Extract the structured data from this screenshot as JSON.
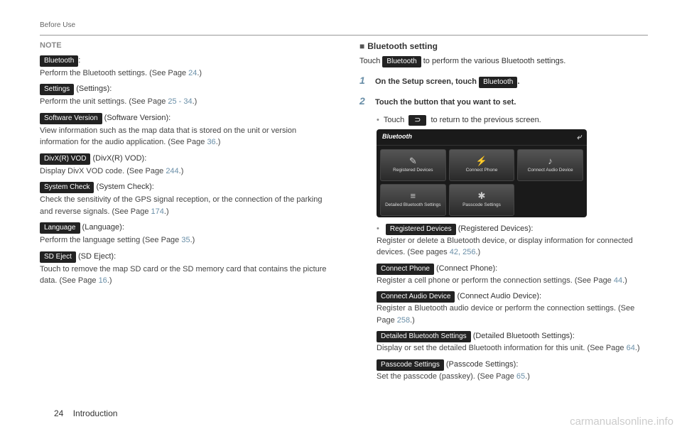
{
  "header": "Before Use",
  "left": {
    "note": "NOTE",
    "items": [
      {
        "pill": "Bluetooth",
        "suffix": ":",
        "body_pre": "Perform the Bluetooth settings. (See Page ",
        "page": "24",
        "body_post": ".)"
      },
      {
        "pill": "Settings",
        "suffix": " (Settings):",
        "body_pre": "Perform the unit settings. (See Page ",
        "page": "25 - 34",
        "body_post": ".)"
      },
      {
        "pill": "Software Version",
        "suffix": " (Software Version):",
        "body_pre": "View information such as the map data that is stored on the unit or version information for the audio application. (See Page ",
        "page": "36",
        "body_post": ".)"
      },
      {
        "pill": "DivX(R) VOD",
        "suffix": " (DivX(R) VOD):",
        "body_pre": "Display DivX VOD code. (See Page ",
        "page": "244",
        "body_post": ".)"
      },
      {
        "pill": "System Check",
        "suffix": " (System Check):",
        "body_pre": "Check the sensitivity of the GPS signal reception, or the connection of the parking and reverse signals. (See Page ",
        "page": "174",
        "body_post": ".)"
      },
      {
        "pill": "Language",
        "suffix": " (Language):",
        "body_pre": "Perform the language setting (See Page ",
        "page": "35",
        "body_post": ".)"
      },
      {
        "pill": "SD Eject",
        "suffix": " (SD Eject):",
        "body_pre": "Touch to remove the map SD card or the SD memory card that contains the picture data. (See Page ",
        "page": "16",
        "body_post": ".)"
      }
    ]
  },
  "right": {
    "title": "Bluetooth setting",
    "intro_pre": "Touch ",
    "intro_pill": "Bluetooth",
    "intro_post": " to perform the various Bluetooth settings.",
    "step1_pre": "On the Setup screen, touch ",
    "step1_pill": "Bluetooth",
    "step1_post": ".",
    "step2": "Touch the button that you want to set.",
    "bullet": "Touch ",
    "bullet_post": " to return to the previous screen.",
    "screen": {
      "title": "Bluetooth",
      "buttons": [
        {
          "label": "Registered Devices",
          "icon": "✎"
        },
        {
          "label": "Connect Phone",
          "icon": "⚡"
        },
        {
          "label": "Connect Audio Device",
          "icon": "♪"
        },
        {
          "label": "Detailed Bluetooth Settings",
          "icon": "≡"
        },
        {
          "label": "Passcode Settings",
          "icon": "✱"
        }
      ]
    },
    "subs": [
      {
        "pill": "Registered Devices",
        "suffix": " (Registered Devices):",
        "body_pre": "Register or delete a Bluetooth device, or display information for connected devices. (See pages ",
        "page": "42, 256",
        "body_post": ".)"
      },
      {
        "pill": "Connect Phone",
        "suffix": " (Connect Phone):",
        "body_pre": "Register a cell phone or perform the connection settings. (See Page ",
        "page": "44",
        "body_post": ".)"
      },
      {
        "pill": "Connect Audio Device",
        "suffix": " (Connect Audio Device):",
        "body_pre": "Register a Bluetooth audio device or perform the connection settings. (See Page ",
        "page": "258",
        "body_post": ".)"
      },
      {
        "pill": "Detailed Bluetooth Settings",
        "suffix": " (Detailed Bluetooth Settings):",
        "body_pre": "Display or set the detailed Bluetooth information for this unit. (See Page ",
        "page": "64",
        "body_post": ".)"
      },
      {
        "pill": "Passcode Settings",
        "suffix": " (Passcode Settings):",
        "body_pre": "Set the passcode (passkey). (See Page ",
        "page": "65",
        "body_post": ".)"
      }
    ]
  },
  "footer": {
    "page": "24",
    "chapter": "Introduction"
  },
  "watermark": "carmanualsonline.info"
}
